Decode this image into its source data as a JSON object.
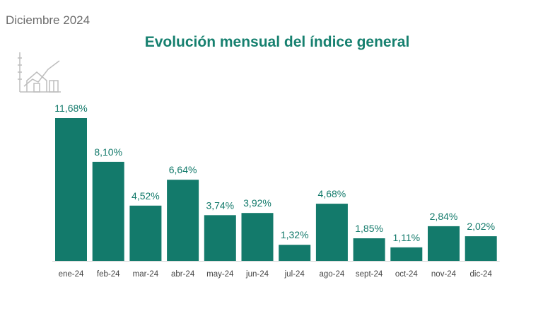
{
  "header": {
    "date": "Diciembre 2024"
  },
  "colors": {
    "bar": "#137a6b",
    "title": "#16806f"
  },
  "logo": {
    "icon": "house-chart-icon"
  },
  "chart_data": {
    "type": "bar",
    "title": "Evolución mensual del índice general",
    "xlabel": "",
    "ylabel": "",
    "categories": [
      "ene-24",
      "feb-24",
      "mar-24",
      "abr-24",
      "may-24",
      "jun-24",
      "jul-24",
      "ago-24",
      "sept-24",
      "oct-24",
      "nov-24",
      "dic-24"
    ],
    "values": [
      11.68,
      8.1,
      4.52,
      6.64,
      3.74,
      3.92,
      1.32,
      4.68,
      1.85,
      1.11,
      2.84,
      2.02
    ],
    "labels": [
      "11,68%",
      "8,10%",
      "4,52%",
      "6,64%",
      "3,74%",
      "3,92%",
      "1,32%",
      "4,68%",
      "1,85%",
      "1,11%",
      "2,84%",
      "2,02%"
    ],
    "ylim": [
      0,
      11.68
    ],
    "grid": false,
    "legend": "none"
  }
}
